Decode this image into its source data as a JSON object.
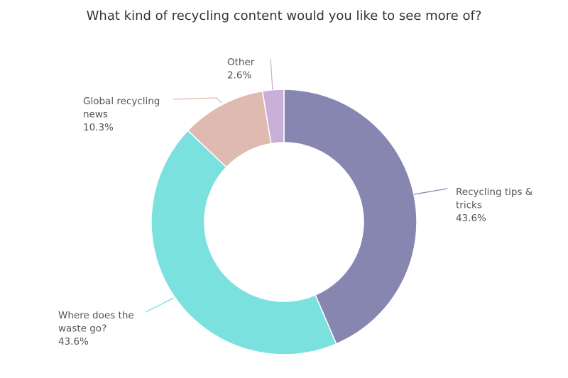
{
  "chart_data": {
    "type": "pie",
    "style": "donut",
    "title": "What kind of recycling content would you like to see more of?",
    "slices": [
      {
        "label": [
          "Recycling tips &",
          "tricks"
        ],
        "value": 43.6,
        "display": "43.6%",
        "color": "#8786b0"
      },
      {
        "label": [
          "Where does the",
          "waste go?"
        ],
        "value": 43.6,
        "display": "43.6%",
        "color": "#7be1df"
      },
      {
        "label": [
          "Global recycling",
          "news"
        ],
        "value": 10.3,
        "display": "10.3%",
        "color": "#dfbab0"
      },
      {
        "label": [
          "Other"
        ],
        "value": 2.6,
        "display": "2.6%",
        "color": "#c8b0d8"
      }
    ]
  }
}
